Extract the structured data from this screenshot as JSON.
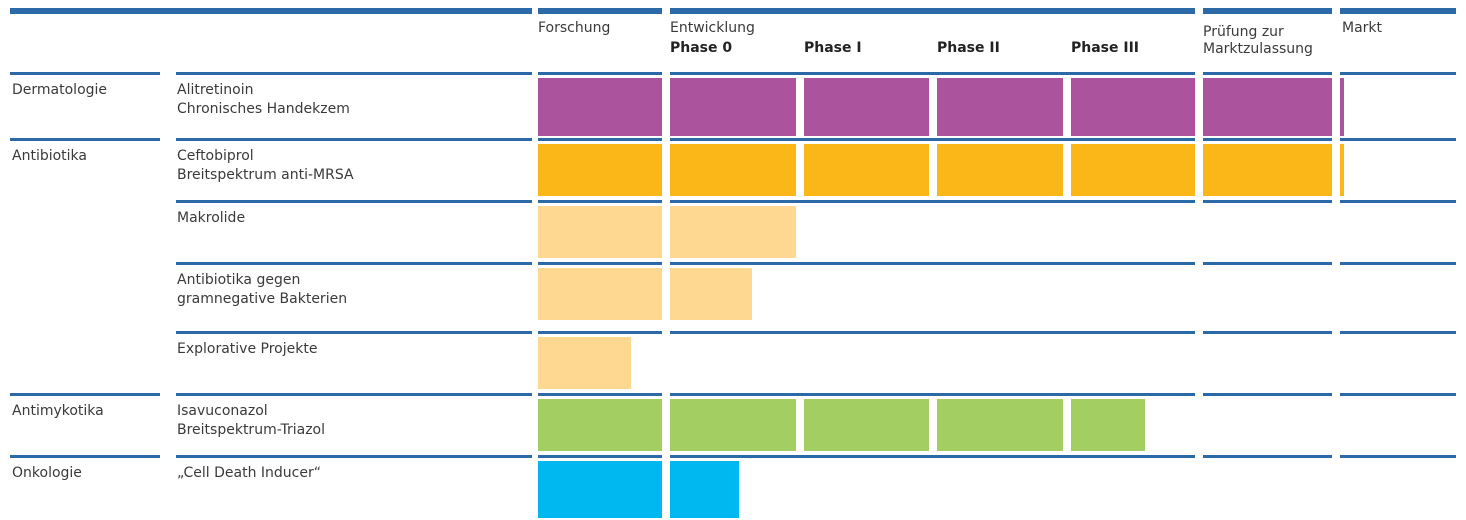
{
  "stages": [
    {
      "label": "Forschung"
    },
    {
      "label": "Entwicklung"
    },
    {
      "label": "Prüfung zur Marktzulassung"
    },
    {
      "label": "Markt"
    }
  ],
  "phases": [
    "Phase 0",
    "Phase I",
    "Phase II",
    "Phase III"
  ],
  "colors": {
    "rule": "#2b69a7",
    "dermatology": "#ab539d",
    "antibiotics": "#fbb717",
    "antibiotics_early": "#fed891",
    "antimycotics": "#a3ce62",
    "oncology": "#00b8f0"
  },
  "rows": [
    {
      "area": "Dermatologie",
      "name": "Alitretinoin",
      "desc": "Chronisches Handekzem",
      "progress_columns": 6.2,
      "color": "dermatology"
    },
    {
      "area": "Antibiotika",
      "name": "Ceftobiprol",
      "desc": "Breitspektrum anti-MRSA",
      "progress_columns": 6.2,
      "color": "antibiotics"
    },
    {
      "area": "",
      "name": "Makrolide",
      "desc": "",
      "progress_columns": 2.0,
      "color": "antibiotics_early"
    },
    {
      "area": "",
      "name": "Antibiotika gegen",
      "desc": "gramnegative Bakterien",
      "progress_columns": 1.65,
      "color": "antibiotics_early"
    },
    {
      "area": "",
      "name": "Explorative Projekte",
      "desc": "",
      "progress_columns": 0.75,
      "color": "antibiotics_early"
    },
    {
      "area": "Antimykotika",
      "name": "Isavuconazol",
      "desc": "Breitspektrum-Triazol",
      "progress_columns": 4.6,
      "color": "antimycotics"
    },
    {
      "area": "Onkologie",
      "name": "„Cell Death Inducer“",
      "desc": "",
      "progress_columns": 1.55,
      "color": "oncology"
    }
  ]
}
